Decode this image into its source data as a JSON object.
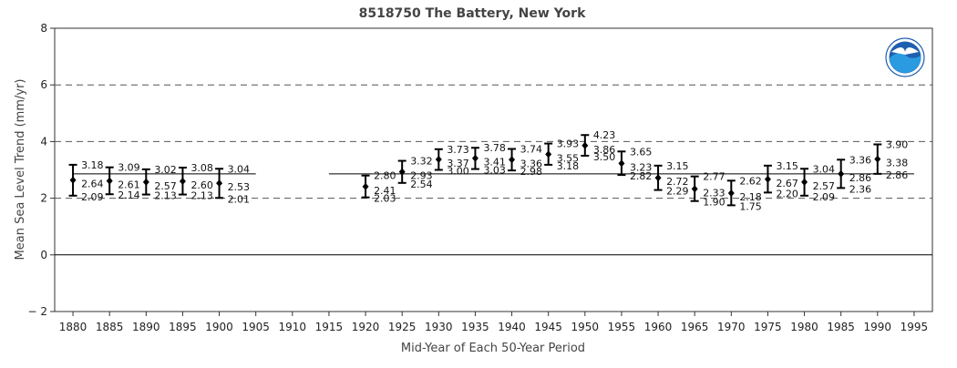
{
  "chart_data": {
    "type": "scatter",
    "title": "8518750 The Battery, New York",
    "xlabel": "Mid-Year of Each 50-Year Period",
    "ylabel": "Mean Sea Level Trend (mm/yr)",
    "xlim": [
      1877.5,
      1997.5
    ],
    "ylim": [
      -2,
      8
    ],
    "x_ticks": [
      1880,
      1885,
      1890,
      1895,
      1900,
      1905,
      1910,
      1915,
      1920,
      1925,
      1930,
      1935,
      1940,
      1945,
      1950,
      1955,
      1960,
      1965,
      1970,
      1975,
      1980,
      1985,
      1990,
      1995
    ],
    "y_ticks": [
      -2,
      0,
      2,
      4,
      6,
      8
    ],
    "dashed_gridlines": [
      2,
      4,
      6
    ],
    "zero_line": 0,
    "reference_line": 2.86,
    "grid": true,
    "colors": {
      "marker": "#000000",
      "dash": "#555555"
    },
    "logo_icon": "noaa-logo",
    "points": [
      {
        "x": 1880,
        "trend": 2.64,
        "upper": 3.18,
        "lower": 2.09,
        "trend_label": "2.64",
        "upper_label": "3.18",
        "lower_label": "2.09"
      },
      {
        "x": 1885,
        "trend": 2.61,
        "upper": 3.09,
        "lower": 2.14,
        "trend_label": "2.61",
        "upper_label": "3.09",
        "lower_label": "2.14"
      },
      {
        "x": 1890,
        "trend": 2.57,
        "upper": 3.02,
        "lower": 2.13,
        "trend_label": "2.57",
        "upper_label": "3.02",
        "lower_label": "2.13"
      },
      {
        "x": 1895,
        "trend": 2.6,
        "upper": 3.08,
        "lower": 2.13,
        "trend_label": "2.60",
        "upper_label": "3.08",
        "lower_label": "2.13"
      },
      {
        "x": 1900,
        "trend": 2.53,
        "upper": 3.04,
        "lower": 2.01,
        "trend_label": "2.53",
        "upper_label": "3.04",
        "lower_label": "2.01"
      },
      {
        "x": 1920,
        "trend": 2.41,
        "upper": 2.8,
        "lower": 2.03,
        "trend_label": "2.41",
        "upper_label": "2.80",
        "lower_label": "2.03"
      },
      {
        "x": 1925,
        "trend": 2.93,
        "upper": 3.32,
        "lower": 2.54,
        "trend_label": "2.93",
        "upper_label": "3.32",
        "lower_label": "2.54"
      },
      {
        "x": 1930,
        "trend": 3.37,
        "upper": 3.73,
        "lower": 3.0,
        "trend_label": "3.37",
        "upper_label": "3.73",
        "lower_label": "3.00"
      },
      {
        "x": 1935,
        "trend": 3.41,
        "upper": 3.78,
        "lower": 3.03,
        "trend_label": "3.41",
        "upper_label": "3.78",
        "lower_label": "3.03"
      },
      {
        "x": 1940,
        "trend": 3.36,
        "upper": 3.74,
        "lower": 2.98,
        "trend_label": "3.36",
        "upper_label": "3.74",
        "lower_label": "2.98"
      },
      {
        "x": 1945,
        "trend": 3.55,
        "upper": 3.93,
        "lower": 3.18,
        "trend_label": "3.55",
        "upper_label": "3.93",
        "lower_label": "3.18"
      },
      {
        "x": 1950,
        "trend": 3.86,
        "upper": 4.23,
        "lower": 3.5,
        "trend_label": "3.86",
        "upper_label": "4.23",
        "lower_label": "3.50"
      },
      {
        "x": 1955,
        "trend": 3.23,
        "upper": 3.65,
        "lower": 2.82,
        "trend_label": "3.23",
        "upper_label": "3.65",
        "lower_label": "2.82"
      },
      {
        "x": 1960,
        "trend": 2.72,
        "upper": 3.15,
        "lower": 2.29,
        "trend_label": "2.72",
        "upper_label": "3.15",
        "lower_label": "2.29"
      },
      {
        "x": 1965,
        "trend": 2.33,
        "upper": 2.77,
        "lower": 1.9,
        "trend_label": "2.33",
        "upper_label": "2.77",
        "lower_label": "1.90"
      },
      {
        "x": 1970,
        "trend": 2.18,
        "upper": 2.62,
        "lower": 1.75,
        "trend_label": "2.18",
        "upper_label": "2.62",
        "lower_label": "1.75"
      },
      {
        "x": 1975,
        "trend": 2.67,
        "upper": 3.15,
        "lower": 2.2,
        "trend_label": "2.67",
        "upper_label": "3.15",
        "lower_label": "2.20"
      },
      {
        "x": 1980,
        "trend": 2.57,
        "upper": 3.04,
        "lower": 2.09,
        "trend_label": "2.57",
        "upper_label": "3.04",
        "lower_label": "2.09"
      },
      {
        "x": 1985,
        "trend": 2.86,
        "upper": 3.36,
        "lower": 2.36,
        "trend_label": "2.86",
        "upper_label": "3.36",
        "lower_label": "2.36"
      },
      {
        "x": 1990,
        "trend": 3.38,
        "upper": 3.9,
        "lower": 2.86,
        "trend_label": "3.38",
        "upper_label": "3.90",
        "lower_label": "2.86"
      }
    ]
  }
}
